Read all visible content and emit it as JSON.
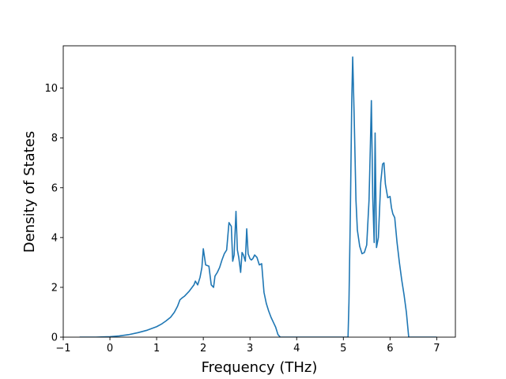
{
  "chart_data": {
    "type": "line",
    "title": "",
    "xlabel": "Frequency (THz)",
    "ylabel": "Density of States",
    "xlim": [
      -1.0,
      7.4
    ],
    "ylim": [
      0,
      11.7
    ],
    "xticks": [
      -1,
      0,
      1,
      2,
      3,
      4,
      5,
      6,
      7
    ],
    "yticks": [
      0,
      2,
      4,
      6,
      8,
      10
    ],
    "grid": false,
    "legend": "none",
    "colors": {
      "line": "#1f77b4",
      "axes": "#000000",
      "background": "#ffffff"
    },
    "series": [
      {
        "x": [
          -0.65,
          -0.3,
          0.0,
          0.2,
          0.4,
          0.6,
          0.8,
          1.0,
          1.1,
          1.2,
          1.3,
          1.38,
          1.45,
          1.5,
          1.55,
          1.6,
          1.7,
          1.8,
          1.83,
          1.88,
          1.93,
          1.97,
          2.0,
          2.05,
          2.12,
          2.17,
          2.22,
          2.25,
          2.3,
          2.35,
          2.4,
          2.45,
          2.5,
          2.55,
          2.6,
          2.63,
          2.66,
          2.7,
          2.73,
          2.76,
          2.8,
          2.83,
          2.86,
          2.9,
          2.93,
          2.96,
          3.0,
          3.03,
          3.06,
          3.1,
          3.15,
          3.2,
          3.25,
          3.3,
          3.35,
          3.4,
          3.45,
          3.5,
          3.55,
          3.6,
          3.65,
          3.7,
          3.8,
          4.0,
          4.5,
          5.0,
          5.1,
          5.12,
          5.15,
          5.18,
          5.2,
          5.23,
          5.27,
          5.3,
          5.35,
          5.4,
          5.45,
          5.5,
          5.55,
          5.58,
          5.6,
          5.63,
          5.66,
          5.68,
          5.71,
          5.75,
          5.8,
          5.84,
          5.87,
          5.9,
          5.95,
          6.0,
          6.03,
          6.06,
          6.1,
          6.15,
          6.2,
          6.25,
          6.3,
          6.35,
          6.4,
          6.5,
          7.0
        ],
        "y": [
          0,
          0,
          0.02,
          0.05,
          0.1,
          0.18,
          0.28,
          0.42,
          0.52,
          0.65,
          0.8,
          1.0,
          1.25,
          1.5,
          1.58,
          1.65,
          1.85,
          2.1,
          2.25,
          2.1,
          2.4,
          2.8,
          3.55,
          2.9,
          2.85,
          2.1,
          2.0,
          2.45,
          2.6,
          2.8,
          3.1,
          3.35,
          3.5,
          4.6,
          4.45,
          3.05,
          3.3,
          5.05,
          3.5,
          3.2,
          2.6,
          3.4,
          3.3,
          3.05,
          4.35,
          3.35,
          3.15,
          3.1,
          3.15,
          3.3,
          3.2,
          2.9,
          2.95,
          1.8,
          1.35,
          1.05,
          0.8,
          0.6,
          0.4,
          0.1,
          0,
          0,
          0,
          0,
          0,
          0,
          0,
          1.4,
          5.0,
          9.5,
          11.25,
          9.0,
          5.5,
          4.3,
          3.65,
          3.35,
          3.4,
          3.7,
          5.5,
          7.8,
          9.5,
          5.6,
          3.8,
          8.2,
          3.6,
          4.0,
          6.2,
          6.95,
          7.0,
          6.15,
          5.6,
          5.65,
          5.2,
          4.95,
          4.8,
          3.8,
          3.0,
          2.3,
          1.7,
          1.0,
          0,
          0,
          0
        ]
      }
    ]
  }
}
